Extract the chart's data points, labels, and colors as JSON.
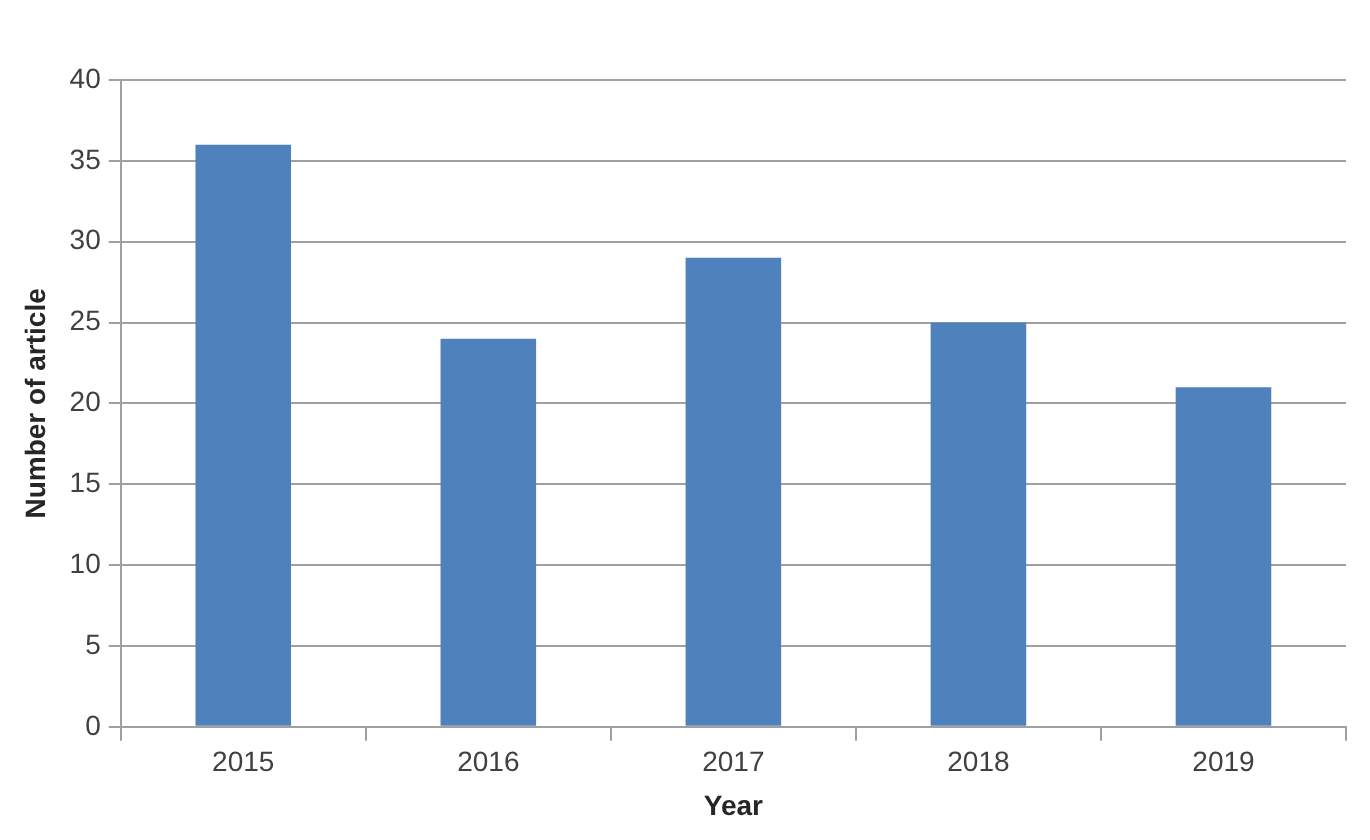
{
  "chart_data": {
    "type": "bar",
    "xlabel": "Year",
    "ylabel": "Number of article",
    "categories": [
      "2015",
      "2016",
      "2017",
      "2018",
      "2019"
    ],
    "values": [
      36,
      24,
      29,
      25,
      21
    ],
    "color": "#4f81bd",
    "ylim": [
      0,
      40
    ],
    "yticks": [
      0,
      5,
      10,
      15,
      20,
      25,
      30,
      35,
      40
    ],
    "grid": "y",
    "legend": false
  }
}
